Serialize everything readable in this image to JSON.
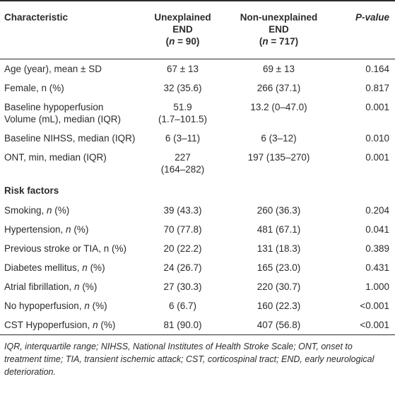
{
  "header": {
    "characteristic": "Characteristic",
    "unexplained_l1": "Unexplained",
    "unexplained_l2": "END",
    "unexplained_n_prefix": "(",
    "unexplained_n_var": "n",
    "unexplained_n_val": " = 90)",
    "nonunexplained_l1": "Non-unexplained",
    "nonunexplained_l2": "END",
    "nonunexplained_n_prefix": "(",
    "nonunexplained_n_var": "n",
    "nonunexplained_n_val": " = 717)",
    "pvalue": "P-value"
  },
  "rows": [
    {
      "label": "Age (year), mean ± SD",
      "label_suffix": "",
      "a": "67 ± 13",
      "a2": "",
      "b": "69 ± 13",
      "b2": "",
      "p": "0.164"
    },
    {
      "label": "Female, n (%)",
      "label_suffix": "",
      "a": "32 (35.6)",
      "a2": "",
      "b": "266 (37.1)",
      "b2": "",
      "p": "0.817"
    },
    {
      "label": "Baseline hypoperfusion",
      "label_suffix": "Volume (mL), median (IQR)",
      "a": "51.9",
      "a2": "(1.7–101.5)",
      "b": "13.2 (0–47.0)",
      "b2": "",
      "p": "0.001"
    },
    {
      "label": "Baseline NIHSS, median (IQR)",
      "label_suffix": "",
      "a": "6 (3–11)",
      "a2": "",
      "b": "6 (3–12)",
      "b2": "",
      "p": "0.010"
    },
    {
      "label": "ONT, min, median (IQR)",
      "label_suffix": "",
      "a": "227",
      "a2": "(164–282)",
      "b": "197 (135–270)",
      "b2": "",
      "p": "0.001"
    }
  ],
  "section": "Risk factors",
  "risk_rows": [
    {
      "pre": "Smoking, ",
      "ital": "n",
      "post": " (%)",
      "a": "39 (43.3)",
      "b": "260 (36.3)",
      "p": "0.204"
    },
    {
      "pre": "Hypertension, ",
      "ital": "n",
      "post": " (%)",
      "a": "70 (77.8)",
      "b": "481 (67.1)",
      "p": "0.041"
    },
    {
      "pre": "Previous stroke or TIA, n (%)",
      "ital": "",
      "post": "",
      "a": "20 (22.2)",
      "b": "131 (18.3)",
      "p": "0.389"
    },
    {
      "pre": "Diabetes mellitus, ",
      "ital": "n",
      "post": " (%)",
      "a": "24 (26.7)",
      "b": "165 (23.0)",
      "p": "0.431"
    },
    {
      "pre": "Atrial fibrillation, ",
      "ital": "n",
      "post": " (%)",
      "a": "27 (30.3)",
      "b": "220 (30.7)",
      "p": "1.000"
    },
    {
      "pre": "No hypoperfusion, ",
      "ital": "n",
      "post": " (%)",
      "a": "6 (6.7)",
      "b": "160 (22.3)",
      "p": "<0.001"
    },
    {
      "pre": "CST Hypoperfusion, ",
      "ital": "n",
      "post": " (%)",
      "a": "81 (90.0)",
      "b": "407 (56.8)",
      "p": "<0.001"
    }
  ],
  "footnote": "IQR, interquartile range; NIHSS, National Institutes of Health Stroke Scale; ONT, onset to treatment time; TIA, transient ischemic attack; CST, corticospinal tract; END, early neurological deterioration."
}
